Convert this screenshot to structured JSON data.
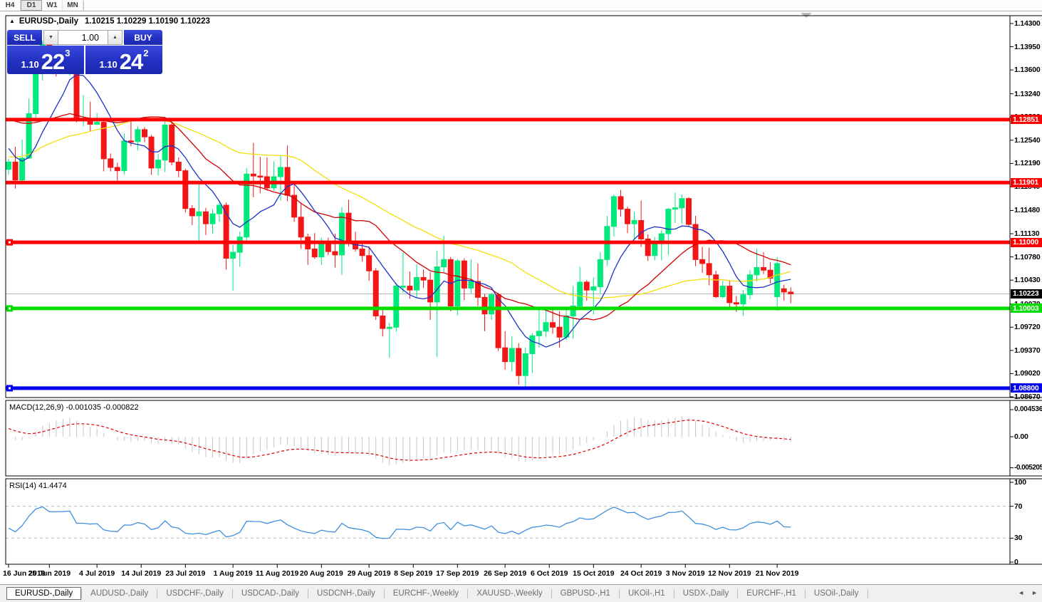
{
  "toolbar": {
    "timeframes": [
      {
        "label": "H4",
        "active": false
      },
      {
        "label": "D1",
        "active": true
      },
      {
        "label": "W1",
        "active": false
      },
      {
        "label": "MN",
        "active": false
      }
    ]
  },
  "header": {
    "symbol_label": "EURUSD-,Daily",
    "ohlc_line": "1.10215 1.10229 1.10190 1.10223",
    "collapse_triangle": "▲"
  },
  "trade": {
    "sell_label": "SELL",
    "buy_label": "BUY",
    "volume": "1.00",
    "sell_pre": "1.10",
    "sell_big": "22",
    "sell_sup": "3",
    "buy_pre": "1.10",
    "buy_big": "24",
    "buy_sup": "2"
  },
  "macd_panel": {
    "label": "MACD(12,26,9) -0.001035 -0.000822",
    "scale_top": "0.004536",
    "scale_mid": "0.00",
    "scale_bottom": "-0.005205"
  },
  "rsi_panel": {
    "label": "RSI(14) 41.4474",
    "scale": [
      "100",
      "70",
      "30",
      "0"
    ]
  },
  "tabs": {
    "items": [
      {
        "label": "EURUSD-,Daily",
        "active": true
      },
      {
        "label": "AUDUSD-,Daily",
        "active": false
      },
      {
        "label": "USDCHF-,Daily",
        "active": false
      },
      {
        "label": "USDCAD-,Daily",
        "active": false
      },
      {
        "label": "USDCNH-,Daily",
        "active": false
      },
      {
        "label": "EURCHF-,Weekly",
        "active": false
      },
      {
        "label": "XAUUSD-,Weekly",
        "active": false
      },
      {
        "label": "GBPUSD-,H1",
        "active": false
      },
      {
        "label": "UKOil-,H1",
        "active": false
      },
      {
        "label": "USDX-,Daily",
        "active": false
      },
      {
        "label": "EURCHF-,H1",
        "active": false
      },
      {
        "label": "USOil-,Daily",
        "active": false
      }
    ],
    "scroll_left": "◄",
    "scroll_right": "►"
  },
  "colors": {
    "bull": "#00e97b",
    "bear": "#f31616",
    "ma_fast": "#1c31c8",
    "ma_mid": "#d00000",
    "ma_slow": "#f0e10a",
    "level_red": "#fe0000",
    "level_green": "#00dd00",
    "level_blue": "#0000f0",
    "current_line": "#b4b4b4",
    "current_chip_bg": "#000000",
    "macd_bar": "#c6c6c6",
    "macd_signal": "#e00000",
    "rsi_line": "#3f8ede",
    "panel_bg": "#ffffff",
    "frame": "#000000"
  },
  "chart_data": {
    "type": "candlestick",
    "symbol": "EURUSD-,Daily",
    "visible_bar_ohlc": {
      "open": 1.10215,
      "high": 1.10229,
      "low": 1.1019,
      "close": 1.10223
    },
    "current_price": "1.10223",
    "y_axis_ticks": [
      "1.14300",
      "1.13950",
      "1.13600",
      "1.13240",
      "1.12890",
      "1.12540",
      "1.12190",
      "1.11840",
      "1.11480",
      "1.11130",
      "1.10780",
      "1.10430",
      "1.10070",
      "1.09720",
      "1.09370",
      "1.09020",
      "1.08670"
    ],
    "y_range": [
      1.0867,
      1.143
    ],
    "x_axis_labels": [
      {
        "label": "16 Jun 2019",
        "i": 0
      },
      {
        "label": "25 Jun 2019",
        "i": 6
      },
      {
        "label": "4 Jul 2019",
        "i": 13
      },
      {
        "label": "14 Jul 2019",
        "i": 19.5
      },
      {
        "label": "23 Jul 2019",
        "i": 26
      },
      {
        "label": "1 Aug 2019",
        "i": 33
      },
      {
        "label": "11 Aug 2019",
        "i": 39.5
      },
      {
        "label": "20 Aug 2019",
        "i": 46
      },
      {
        "label": "29 Aug 2019",
        "i": 53
      },
      {
        "label": "8 Sep 2019",
        "i": 59.5
      },
      {
        "label": "17 Sep 2019",
        "i": 66
      },
      {
        "label": "26 Sep 2019",
        "i": 73
      },
      {
        "label": "6 Oct 2019",
        "i": 79.5
      },
      {
        "label": "15 Oct 2019",
        "i": 86
      },
      {
        "label": "24 Oct 2019",
        "i": 93
      },
      {
        "label": "3 Nov 2019",
        "i": 99.5
      },
      {
        "label": "12 Nov 2019",
        "i": 106
      },
      {
        "label": "21 Nov 2019",
        "i": 113
      }
    ],
    "h_lines": [
      {
        "price": 1.12851,
        "label": "1.12851",
        "color": "#fe0000",
        "marker": false
      },
      {
        "price": 1.11901,
        "label": "1.11901",
        "color": "#fe0000",
        "marker": false
      },
      {
        "price": 1.11,
        "label": "1.11000",
        "color": "#fe0000",
        "marker": true
      },
      {
        "price": 1.10003,
        "label": "1.10003",
        "color": "#00dd00",
        "marker": true
      },
      {
        "price": 1.088,
        "label": "1.08800",
        "color": "#0000f0",
        "marker": true
      }
    ],
    "overlays": {
      "ma_fast_period": 8,
      "ma_mid_period": 20,
      "ma_slow_period": 40
    },
    "indicators": [
      {
        "name": "MACD",
        "params": [
          12,
          26,
          9
        ],
        "current_values": [
          -0.001035,
          -0.000822
        ],
        "scale": [
          0.004536,
          0.0,
          -0.005205
        ]
      },
      {
        "name": "RSI",
        "params": [
          14
        ],
        "current_value": 41.4474,
        "levels": [
          70,
          30
        ],
        "scale": [
          0,
          100
        ]
      }
    ],
    "warmup_closes_offscreen": [
      1.122,
      1.1205,
      1.1185,
      1.117,
      1.1162,
      1.1155,
      1.118,
      1.12,
      1.1215,
      1.123,
      1.121,
      1.119,
      1.1175,
      1.116,
      1.115,
      1.1135,
      1.112,
      1.1107,
      1.113,
      1.1168,
      1.1205,
      1.125,
      1.128,
      1.131,
      1.1335,
      1.1348,
      1.1325,
      1.1305,
      1.131,
      1.132,
      1.133,
      1.134,
      1.132,
      1.13,
      1.1275,
      1.125,
      1.1235,
      1.1225,
      1.1218,
      1.121
    ],
    "candles": [
      [
        1.121,
        1.1226,
        1.1202,
        1.1221
      ],
      [
        1.1221,
        1.1244,
        1.1181,
        1.1194
      ],
      [
        1.1194,
        1.1255,
        1.1187,
        1.1227
      ],
      [
        1.1227,
        1.1317,
        1.1226,
        1.1294
      ],
      [
        1.1294,
        1.1378,
        1.1286,
        1.1369
      ],
      [
        1.1369,
        1.1404,
        1.1344,
        1.1399
      ],
      [
        1.1399,
        1.1412,
        1.136,
        1.1367
      ],
      [
        1.1367,
        1.1391,
        1.135,
        1.1366
      ],
      [
        1.1366,
        1.1389,
        1.1358,
        1.1368
      ],
      [
        1.1368,
        1.1392,
        1.1351,
        1.1373
      ],
      [
        1.1373,
        1.1375,
        1.1281,
        1.1285
      ],
      [
        1.1285,
        1.1322,
        1.1275,
        1.1285
      ],
      [
        1.1285,
        1.1312,
        1.1268,
        1.1278
      ],
      [
        1.1278,
        1.1295,
        1.1277,
        1.1281
      ],
      [
        1.1281,
        1.1288,
        1.1207,
        1.1226
      ],
      [
        1.1226,
        1.1234,
        1.1207,
        1.1213
      ],
      [
        1.1213,
        1.122,
        1.1193,
        1.1208
      ],
      [
        1.1208,
        1.1264,
        1.1202,
        1.1253
      ],
      [
        1.1253,
        1.1286,
        1.1245,
        1.1252
      ],
      [
        1.1252,
        1.1275,
        1.1239,
        1.127
      ],
      [
        1.127,
        1.1274,
        1.1251,
        1.1259
      ],
      [
        1.1259,
        1.1262,
        1.1202,
        1.1212
      ],
      [
        1.1212,
        1.1233,
        1.1201,
        1.1224
      ],
      [
        1.1224,
        1.1283,
        1.1206,
        1.1277
      ],
      [
        1.1277,
        1.1282,
        1.1216,
        1.1221
      ],
      [
        1.1221,
        1.1228,
        1.1198,
        1.1208
      ],
      [
        1.1208,
        1.1211,
        1.1145,
        1.1151
      ],
      [
        1.1151,
        1.1156,
        1.1126,
        1.114
      ],
      [
        1.114,
        1.1188,
        1.1101,
        1.1146
      ],
      [
        1.1146,
        1.1152,
        1.1111,
        1.1128
      ],
      [
        1.1128,
        1.115,
        1.1113,
        1.1143
      ],
      [
        1.1143,
        1.1162,
        1.1131,
        1.1156
      ],
      [
        1.1156,
        1.116,
        1.1059,
        1.1076
      ],
      [
        1.1076,
        1.1096,
        1.1027,
        1.1085
      ],
      [
        1.1085,
        1.1116,
        1.1063,
        1.1108
      ],
      [
        1.1108,
        1.1212,
        1.1101,
        1.1203
      ],
      [
        1.1203,
        1.125,
        1.1168,
        1.12
      ],
      [
        1.12,
        1.1229,
        1.1174,
        1.1199
      ],
      [
        1.1199,
        1.1228,
        1.1178,
        1.1182
      ],
      [
        1.1182,
        1.1222,
        1.1178,
        1.1199
      ],
      [
        1.1199,
        1.1231,
        1.1163,
        1.1213
      ],
      [
        1.1213,
        1.1246,
        1.1162,
        1.1171
      ],
      [
        1.1171,
        1.1192,
        1.1131,
        1.1138
      ],
      [
        1.1138,
        1.116,
        1.109,
        1.1108
      ],
      [
        1.1108,
        1.1113,
        1.1066,
        1.109
      ],
      [
        1.109,
        1.1114,
        1.1075,
        1.1078
      ],
      [
        1.1078,
        1.1107,
        1.1066,
        1.11
      ],
      [
        1.11,
        1.1107,
        1.1081,
        1.1086
      ],
      [
        1.1086,
        1.1113,
        1.1062,
        1.1081
      ],
      [
        1.1081,
        1.1153,
        1.1051,
        1.1144
      ],
      [
        1.1144,
        1.1164,
        1.1094,
        1.1101
      ],
      [
        1.1101,
        1.1116,
        1.1086,
        1.109
      ],
      [
        1.109,
        1.1098,
        1.1071,
        1.108
      ],
      [
        1.108,
        1.1094,
        1.1042,
        1.1057
      ],
      [
        1.1057,
        1.1061,
        1.0983,
        1.0989
      ],
      [
        1.0989,
        1.0998,
        1.0958,
        1.097
      ],
      [
        1.097,
        1.0979,
        1.0926,
        1.0972
      ],
      [
        1.0972,
        1.1039,
        1.0965,
        1.1034
      ],
      [
        1.1034,
        1.1085,
        1.1024,
        1.1034
      ],
      [
        1.1034,
        1.1056,
        1.1015,
        1.1028
      ],
      [
        1.1028,
        1.1067,
        1.1016,
        1.1047
      ],
      [
        1.1047,
        1.1059,
        1.1031,
        1.1043
      ],
      [
        1.1043,
        1.1055,
        1.0983,
        1.101
      ],
      [
        1.101,
        1.1087,
        1.0927,
        1.1063
      ],
      [
        1.1063,
        1.111,
        1.1055,
        1.1074
      ],
      [
        1.1074,
        1.1078,
        1.0996,
        1.1004
      ],
      [
        1.1004,
        1.1075,
        1.099,
        1.1072
      ],
      [
        1.1072,
        1.1076,
        1.1013,
        1.1031
      ],
      [
        1.1031,
        1.1074,
        1.1023,
        1.1041
      ],
      [
        1.1041,
        1.1068,
        1.1004,
        1.1017
      ],
      [
        1.1017,
        1.1022,
        1.0966,
        1.0992
      ],
      [
        1.0992,
        1.1024,
        1.0983,
        1.1021
      ],
      [
        1.1021,
        1.1024,
        1.0936,
        1.0941
      ],
      [
        1.0941,
        1.0966,
        1.0908,
        1.092
      ],
      [
        1.092,
        1.0958,
        1.0905,
        1.094
      ],
      [
        1.094,
        1.0948,
        1.0885,
        1.0899
      ],
      [
        1.0899,
        1.0941,
        1.0879,
        1.0932
      ],
      [
        1.0932,
        1.0963,
        1.0903,
        1.0959
      ],
      [
        1.0959,
        1.0999,
        1.0941,
        1.0966
      ],
      [
        1.0966,
        1.0999,
        1.0957,
        1.0979
      ],
      [
        1.0979,
        1.1,
        1.0962,
        1.0972
      ],
      [
        1.0972,
        1.0996,
        1.0941,
        1.0957
      ],
      [
        1.0957,
        1.0999,
        1.0953,
        1.0989
      ],
      [
        1.0989,
        1.1034,
        1.0955,
        1.1004
      ],
      [
        1.1004,
        1.1063,
        1.1002,
        1.104
      ],
      [
        1.104,
        1.1043,
        1.1012,
        1.1028
      ],
      [
        1.1028,
        1.1047,
        1.0991,
        1.1033
      ],
      [
        1.1033,
        1.1085,
        1.1023,
        1.1074
      ],
      [
        1.1074,
        1.114,
        1.1064,
        1.1124
      ],
      [
        1.1124,
        1.1172,
        1.1109,
        1.1169
      ],
      [
        1.1169,
        1.1179,
        1.1139,
        1.115
      ],
      [
        1.115,
        1.1154,
        1.1114,
        1.1128
      ],
      [
        1.1128,
        1.1146,
        1.1106,
        1.1133
      ],
      [
        1.1133,
        1.1163,
        1.1093,
        1.1105
      ],
      [
        1.1105,
        1.1112,
        1.1072,
        1.108
      ],
      [
        1.108,
        1.1108,
        1.1073,
        1.1099
      ],
      [
        1.1099,
        1.1118,
        1.1073,
        1.1113
      ],
      [
        1.1113,
        1.1152,
        1.1081,
        1.115
      ],
      [
        1.115,
        1.1175,
        1.1129,
        1.1152
      ],
      [
        1.1152,
        1.1172,
        1.1128,
        1.1166
      ],
      [
        1.1166,
        1.1168,
        1.1124,
        1.1127
      ],
      [
        1.1127,
        1.114,
        1.1064,
        1.1074
      ],
      [
        1.1074,
        1.1093,
        1.1054,
        1.1068
      ],
      [
        1.1068,
        1.1092,
        1.1035,
        1.1051
      ],
      [
        1.1051,
        1.1057,
        1.1016,
        1.1018
      ],
      [
        1.1018,
        1.1042,
        1.1016,
        1.1034
      ],
      [
        1.1034,
        1.1043,
        1.1002,
        1.1009
      ],
      [
        1.1009,
        1.1019,
        1.0995,
        1.1007
      ],
      [
        1.1007,
        1.1028,
        1.0989,
        1.1021
      ],
      [
        1.1021,
        1.1058,
        1.1014,
        1.1051
      ],
      [
        1.1051,
        1.109,
        1.1041,
        1.1062
      ],
      [
        1.1062,
        1.1085,
        1.1052,
        1.1058
      ],
      [
        1.1058,
        1.107,
        1.1038,
        1.1046
      ],
      [
        1.1018,
        1.1078,
        1.0997,
        1.1068
      ],
      [
        1.103,
        1.1036,
        1.1012,
        1.1025
      ],
      [
        1.1025,
        1.1032,
        1.1008,
        1.10223
      ]
    ]
  }
}
